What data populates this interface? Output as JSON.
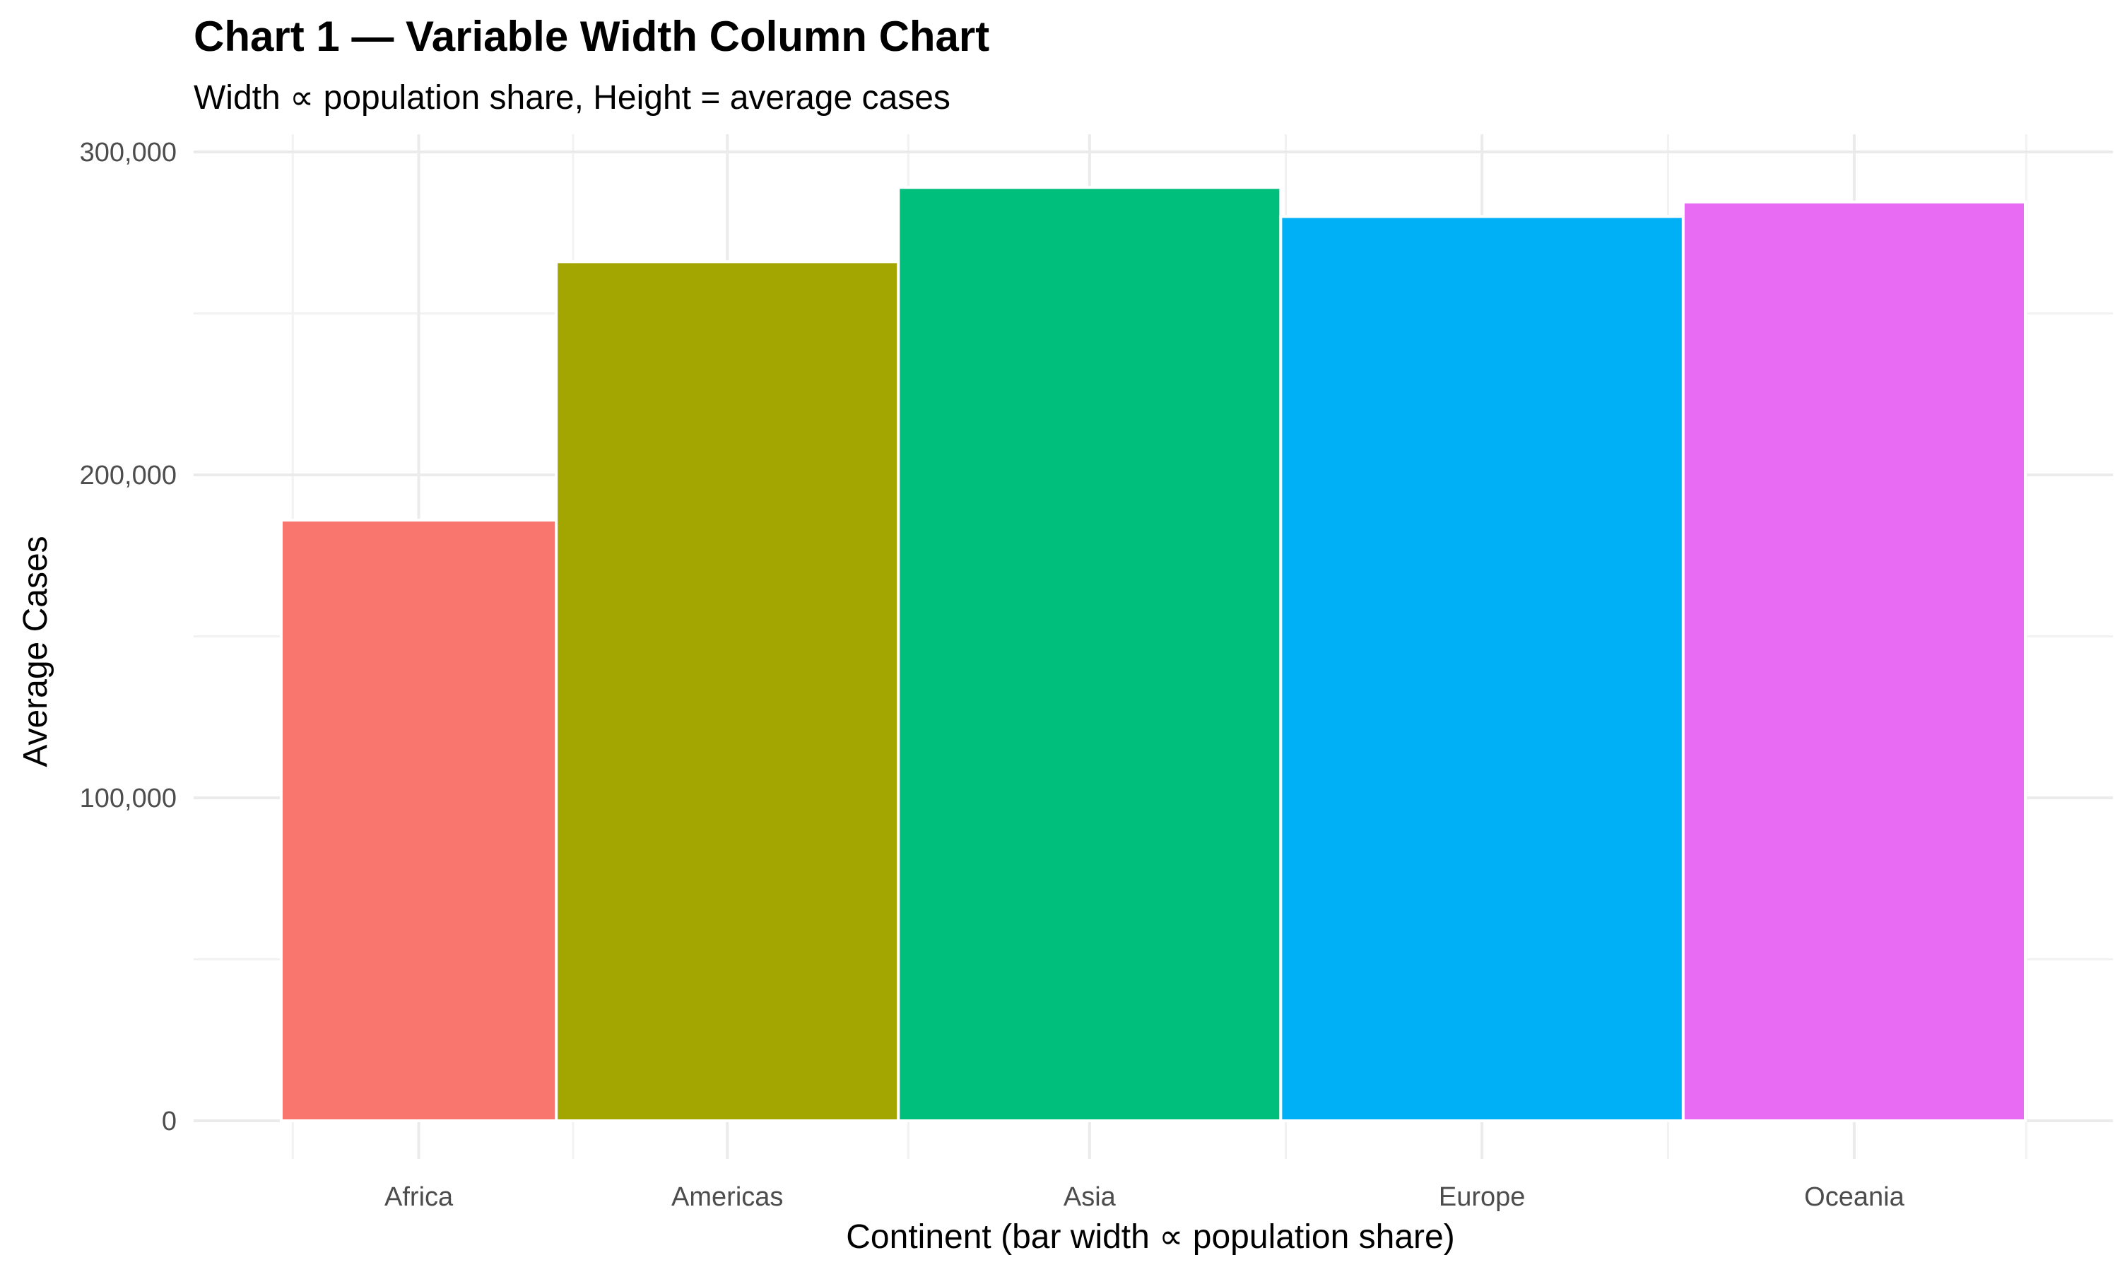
{
  "chart_data": {
    "type": "bar",
    "variant": "variable-width",
    "title": "Chart 1 — Variable Width Column Chart",
    "subtitle": "Width ∝ population share, Height = average cases",
    "xlabel": "Continent (bar width ∝ population share)",
    "ylabel": "Average Cases",
    "categories": [
      "Africa",
      "Americas",
      "Asia",
      "Europe",
      "Oceania"
    ],
    "values": [
      186000,
      266000,
      289000,
      280000,
      284500
    ],
    "relative_widths": [
      0.164,
      0.204,
      0.228,
      0.24,
      0.204
    ],
    "colors": [
      "#F8766D",
      "#A3A500",
      "#00BF7D",
      "#00B0F6",
      "#E76BF3"
    ],
    "ylim": [
      0,
      300000
    ],
    "yticks": [
      0,
      100000,
      200000,
      300000
    ],
    "ytick_labels": [
      "0",
      "100,000",
      "200,000",
      "300,000"
    ],
    "grid": true,
    "legend": "none"
  }
}
